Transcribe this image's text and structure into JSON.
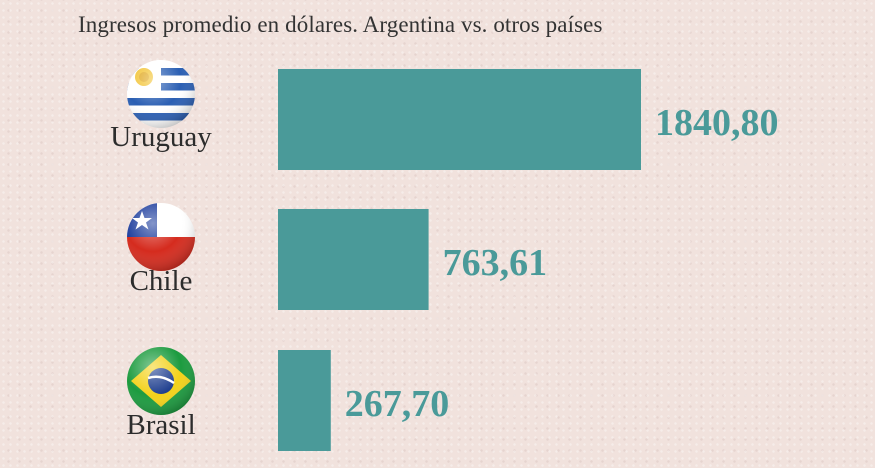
{
  "chart_data": {
    "type": "bar",
    "orientation": "horizontal",
    "title": "Ingresos promedio en dólares.  Argentina vs. otros países",
    "categories": [
      "Uruguay",
      "Chile",
      "Brasil"
    ],
    "values": [
      1840.8,
      763.61,
      267.7
    ],
    "value_labels": [
      "1840,80",
      "763,61",
      "267,70"
    ],
    "flags": [
      "uruguay-flag-icon",
      "chile-flag-icon",
      "brasil-flag-icon"
    ],
    "bar_color": "#4a9a99",
    "label_color": "#4a9a99",
    "xlabel": "",
    "ylabel": "",
    "grid": false
  }
}
